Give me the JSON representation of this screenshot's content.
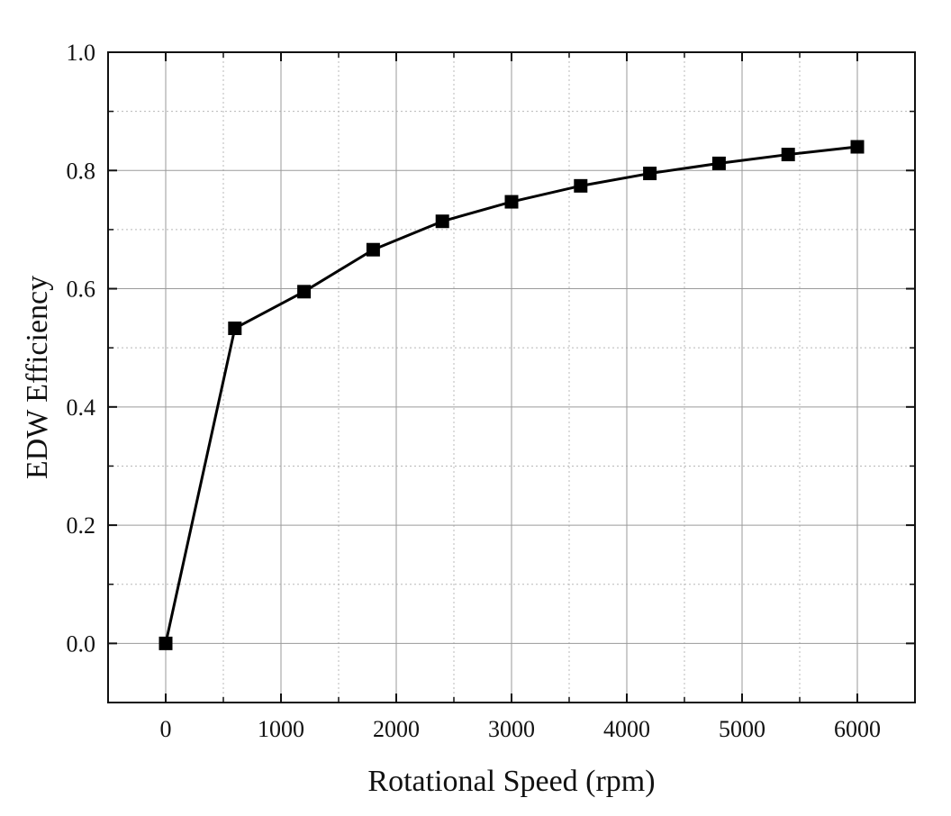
{
  "chart_data": {
    "type": "line",
    "title": "",
    "xlabel": "Rotational Speed (rpm)",
    "ylabel": "EDW Efficiency",
    "xlim": [
      -500,
      6500
    ],
    "ylim": [
      -0.1,
      1.0
    ],
    "xticks": [
      0,
      1000,
      2000,
      3000,
      4000,
      5000,
      6000
    ],
    "xtick_labels": [
      "0",
      "1000",
      "2000",
      "3000",
      "4000",
      "5000",
      "6000"
    ],
    "yticks": [
      0.0,
      0.2,
      0.4,
      0.6,
      0.8,
      1.0
    ],
    "ytick_labels": [
      "0.0",
      "0.2",
      "0.4",
      "0.6",
      "0.8",
      "1.0"
    ],
    "x_minor_ticks": [
      500,
      1500,
      2500,
      3500,
      4500,
      5500
    ],
    "y_minor_ticks": [
      -0.1,
      0.1,
      0.3,
      0.5,
      0.7,
      0.9
    ],
    "grid": true,
    "series": [
      {
        "name": "EDW Efficiency",
        "marker": "square",
        "color": "#000000",
        "x": [
          0,
          600,
          1200,
          1800,
          2400,
          3000,
          3600,
          4200,
          4800,
          5400,
          6000
        ],
        "y": [
          0.0,
          0.533,
          0.595,
          0.666,
          0.714,
          0.747,
          0.774,
          0.795,
          0.812,
          0.827,
          0.84
        ]
      }
    ]
  }
}
